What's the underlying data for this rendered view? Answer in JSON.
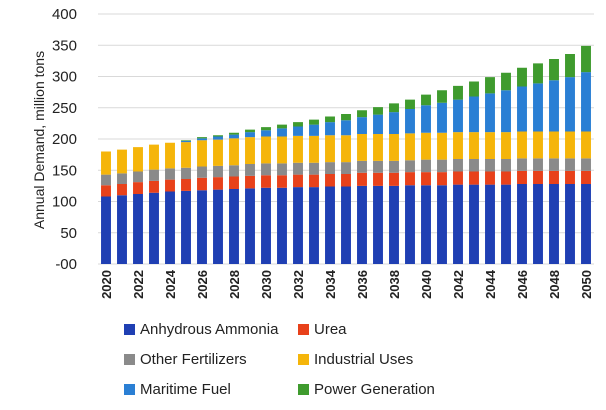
{
  "chart_data": {
    "type": "bar",
    "stacked": true,
    "ylabel": "Annual Demand, million tons",
    "xlabel": "",
    "ylim": [
      0,
      400
    ],
    "yticks": [
      0,
      50,
      100,
      150,
      200,
      250,
      300,
      350,
      400
    ],
    "ytick_labels": [
      "-00",
      "50",
      "100",
      "150",
      "200",
      "250",
      "300",
      "350",
      "400"
    ],
    "grid": "horizontal",
    "legend_position": "bottom",
    "x": [
      2020,
      2021,
      2022,
      2023,
      2024,
      2025,
      2026,
      2027,
      2028,
      2029,
      2030,
      2031,
      2032,
      2033,
      2034,
      2035,
      2036,
      2037,
      2038,
      2039,
      2040,
      2041,
      2042,
      2043,
      2044,
      2045,
      2046,
      2047,
      2048,
      2049,
      2050
    ],
    "x_tick_labels": [
      "2020",
      "2022",
      "2024",
      "2026",
      "2028",
      "2030",
      "2032",
      "2034",
      "2036",
      "2038",
      "2040",
      "2042",
      "2044",
      "2046",
      "2048",
      "2050"
    ],
    "series": [
      {
        "name": "Anhydrous Ammonia",
        "color": "#1f3fb3",
        "values": [
          108,
          110,
          112,
          114,
          116,
          117,
          118,
          119,
          120,
          121,
          122,
          122,
          123,
          123,
          124,
          124,
          125,
          125,
          125,
          126,
          126,
          126,
          127,
          127,
          127,
          127,
          128,
          128,
          128,
          128,
          128
        ]
      },
      {
        "name": "Urea",
        "color": "#e8411a",
        "values": [
          18,
          18,
          19,
          19,
          19,
          19,
          20,
          20,
          20,
          20,
          20,
          20,
          20,
          20,
          20,
          20,
          21,
          21,
          21,
          21,
          21,
          21,
          21,
          21,
          21,
          21,
          21,
          21,
          21,
          21,
          21
        ]
      },
      {
        "name": "Other Fertilizers",
        "color": "#8a8a8a",
        "values": [
          17,
          17,
          17,
          18,
          18,
          18,
          18,
          18,
          18,
          19,
          19,
          19,
          19,
          19,
          19,
          19,
          19,
          19,
          19,
          19,
          20,
          20,
          20,
          20,
          20,
          20,
          20,
          20,
          20,
          20,
          20
        ]
      },
      {
        "name": "Industrial Uses",
        "color": "#f5b50a",
        "values": [
          37,
          38,
          39,
          40,
          41,
          41,
          42,
          42,
          43,
          43,
          43,
          43,
          43,
          43,
          43,
          43,
          43,
          43,
          43,
          43,
          43,
          43,
          43,
          43,
          43,
          43,
          43,
          43,
          43,
          43,
          43
        ]
      },
      {
        "name": "Maritime Fuel",
        "color": "#2a7fd4",
        "values": [
          0,
          0,
          0,
          0,
          0,
          2,
          3,
          5,
          6,
          8,
          10,
          13,
          15,
          18,
          21,
          24,
          27,
          31,
          35,
          39,
          44,
          48,
          52,
          57,
          62,
          67,
          72,
          77,
          82,
          87,
          95
        ]
      },
      {
        "name": "Power Generation",
        "color": "#3f9b2e",
        "values": [
          0,
          0,
          0,
          0,
          0,
          1,
          2,
          2,
          3,
          4,
          5,
          6,
          7,
          8,
          9,
          10,
          11,
          12,
          14,
          15,
          17,
          20,
          22,
          24,
          26,
          28,
          30,
          32,
          34,
          37,
          42
        ]
      }
    ]
  }
}
